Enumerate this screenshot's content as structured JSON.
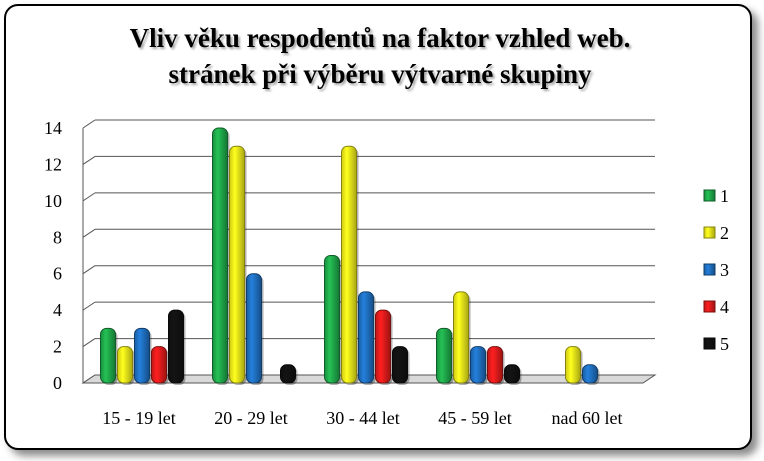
{
  "chart_data": {
    "type": "bar",
    "title_lines": [
      "Vliv věku respodentů na faktor vzhled web.",
      "stránek při výběru výtvarné skupiny"
    ],
    "categories": [
      "15 - 19 let",
      "20 - 29 let",
      "30 - 44 let",
      "45 - 59 let",
      "nad 60 let"
    ],
    "series": [
      {
        "name": "1",
        "color": "#1fa84a",
        "values": [
          3,
          14,
          7,
          3,
          0
        ]
      },
      {
        "name": "2",
        "color": "#f2ee1a",
        "values": [
          2,
          13,
          13,
          5,
          2
        ]
      },
      {
        "name": "3",
        "color": "#1f6fc0",
        "values": [
          3,
          6,
          5,
          2,
          1
        ]
      },
      {
        "name": "4",
        "color": "#e01b1b",
        "values": [
          2,
          0,
          4,
          2,
          0
        ]
      },
      {
        "name": "5",
        "color": "#111111",
        "values": [
          4,
          1,
          2,
          1,
          0
        ]
      }
    ],
    "yticks": [
      "0",
      "2",
      "4",
      "6",
      "8",
      "10",
      "12",
      "14"
    ],
    "ylim": [
      0,
      14
    ],
    "grid": true,
    "legend_position": "right"
  }
}
